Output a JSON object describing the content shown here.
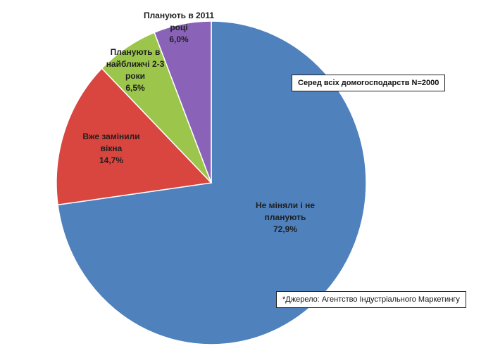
{
  "notes": {
    "sample": "Серед всіх домогосподарств N=2000",
    "source": "*Джерело: Агентство Індустріального Маркетингу"
  },
  "chart_data": {
    "type": "pie",
    "start_angle_deg": 0,
    "direction": "clockwise",
    "legend": "none",
    "slices": [
      {
        "label_lines": [
          "Не міняли і не",
          "планують"
        ],
        "value_text": "72,9%",
        "value": 72.9,
        "color": "#4f81bd"
      },
      {
        "label_lines": [
          "Вже замінили",
          "вікна"
        ],
        "value_text": "14,7%",
        "value": 14.7,
        "color": "#d9453f"
      },
      {
        "label_lines": [
          "Планують в",
          "найближчі 2-3",
          "роки"
        ],
        "value_text": "6,5%",
        "value": 6.5,
        "color": "#9bc64b"
      },
      {
        "label_lines": [
          "Планують в 2011",
          "році"
        ],
        "value_text": "6,0%",
        "value": 6.0,
        "color": "#8a63b8"
      }
    ]
  }
}
